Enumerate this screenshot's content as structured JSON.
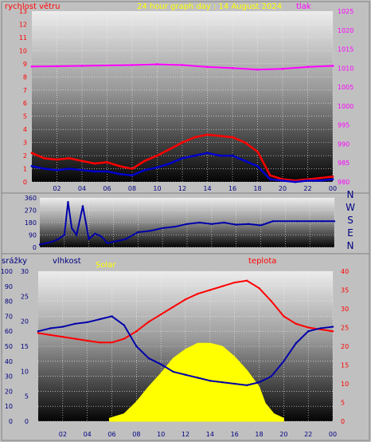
{
  "chart_data": [
    {
      "id": "wind",
      "type": "line",
      "title": "24 hour graph day : 14 August 2024",
      "ylabel": "rychlost větru",
      "y2label": "tlak",
      "ylim": [
        0,
        13
      ],
      "y2lim": [
        980,
        1025
      ],
      "yticks": [
        "0",
        "1",
        "2",
        "3",
        "4",
        "5",
        "6",
        "7",
        "8",
        "9",
        "10",
        "11",
        "12",
        "13"
      ],
      "y2ticks": [
        "980",
        "985",
        "990",
        "995",
        "1000",
        "1005",
        "1010",
        "1015",
        "1020",
        "1025"
      ],
      "xticks": [
        "02",
        "04",
        "06",
        "08",
        "10",
        "12",
        "14",
        "16",
        "18",
        "20",
        "22",
        "00"
      ],
      "series": [
        {
          "color": "#ff0000",
          "x": [
            0,
            1,
            2,
            3,
            4,
            5,
            6,
            7,
            8,
            9,
            10,
            11,
            12,
            13,
            14,
            15,
            16,
            17,
            18,
            19,
            20,
            21,
            22,
            23,
            24
          ],
          "values": [
            2.2,
            1.8,
            1.7,
            1.8,
            1.6,
            1.4,
            1.5,
            1.2,
            1.0,
            1.6,
            2.0,
            2.5,
            3.0,
            3.4,
            3.6,
            3.5,
            3.4,
            3.0,
            2.3,
            0.5,
            0.2,
            0.1,
            0.2,
            0.3,
            0.4
          ]
        },
        {
          "color": "#0000cc",
          "x": [
            0,
            1,
            2,
            3,
            4,
            5,
            6,
            7,
            8,
            9,
            10,
            11,
            12,
            13,
            14,
            15,
            16,
            17,
            18,
            19,
            20,
            21,
            22,
            23,
            24
          ],
          "values": [
            1.2,
            1.0,
            0.9,
            1.0,
            0.9,
            0.8,
            0.8,
            0.6,
            0.5,
            0.9,
            1.1,
            1.4,
            1.8,
            2.0,
            2.2,
            2.0,
            2.0,
            1.6,
            1.2,
            0.2,
            0.1,
            0.0,
            0.1,
            0.1,
            0.2
          ]
        },
        {
          "color": "#ff00ff",
          "axis": "y2",
          "x": [
            0,
            2,
            4,
            6,
            8,
            10,
            12,
            14,
            16,
            18,
            20,
            22,
            24
          ],
          "values": [
            1010.4,
            1010.5,
            1010.6,
            1010.7,
            1010.8,
            1011.0,
            1010.8,
            1010.3,
            1010.0,
            1009.6,
            1009.8,
            1010.3,
            1010.6
          ]
        }
      ]
    },
    {
      "id": "direction",
      "type": "line",
      "ylim": [
        0,
        360
      ],
      "yticks": [
        "0",
        "90",
        "180",
        "270",
        "360"
      ],
      "right_labels": [
        "N",
        "W",
        "S",
        "E",
        "N"
      ],
      "series": [
        {
          "color": "#0000aa",
          "x": [
            0,
            0.5,
            1,
            1.5,
            2,
            2.3,
            2.6,
            3,
            3.5,
            4,
            4.5,
            5,
            5.5,
            6,
            7,
            8,
            9,
            10,
            11,
            12,
            13,
            14,
            15,
            16,
            17,
            18,
            19,
            20,
            21,
            22,
            23,
            24
          ],
          "values": [
            20,
            30,
            40,
            60,
            90,
            330,
            140,
            90,
            300,
            60,
            100,
            80,
            30,
            40,
            60,
            110,
            120,
            140,
            150,
            170,
            180,
            170,
            180,
            165,
            170,
            160,
            190,
            190,
            190,
            190,
            190,
            190
          ]
        }
      ]
    },
    {
      "id": "humidity",
      "type": "line",
      "ylabel": "vlhkost",
      "y0label": "srážky",
      "y3label": "Solar",
      "y2label": "teplota",
      "ylim": [
        0,
        100
      ],
      "y0lim": [
        0,
        30
      ],
      "y2lim": [
        0,
        40
      ],
      "yticks": [
        "0",
        "10",
        "20",
        "30",
        "40",
        "50",
        "60",
        "70",
        "80",
        "90",
        "100"
      ],
      "y0ticks": [
        "0",
        "5",
        "10",
        "15",
        "20",
        "25",
        "30"
      ],
      "y2ticks": [
        "0",
        "5",
        "10",
        "15",
        "20",
        "25",
        "30",
        "35",
        "40"
      ],
      "xticks": [
        "02",
        "04",
        "06",
        "08",
        "10",
        "12",
        "14",
        "16",
        "18",
        "20",
        "22",
        "00"
      ],
      "series": [
        {
          "color": "#ff0000",
          "axis": "y2",
          "x": [
            0,
            1,
            2,
            3,
            4,
            5,
            6,
            7,
            8,
            9,
            10,
            11,
            12,
            13,
            14,
            15,
            16,
            17,
            18,
            19,
            20,
            21,
            22,
            23,
            24
          ],
          "values": [
            23.5,
            23.0,
            22.5,
            22.0,
            21.5,
            21.0,
            21.0,
            22.0,
            24.0,
            26.5,
            28.5,
            30.5,
            32.5,
            34.0,
            35.0,
            36.0,
            37.0,
            37.5,
            35.5,
            32.0,
            28.0,
            26.0,
            25.0,
            24.5,
            24.0
          ]
        },
        {
          "color": "#0000aa",
          "x": [
            0,
            1,
            2,
            3,
            4,
            5,
            6,
            7,
            8,
            9,
            10,
            11,
            12,
            13,
            14,
            15,
            16,
            17,
            18,
            19,
            20,
            21,
            22,
            23,
            24
          ],
          "values": [
            60,
            62,
            63,
            65,
            66,
            68,
            70,
            64,
            50,
            42,
            38,
            33,
            31,
            29,
            27,
            26,
            25,
            24,
            26,
            30,
            40,
            52,
            60,
            62,
            63
          ]
        },
        {
          "color": "#ffff00",
          "type": "area",
          "x": [
            5.8,
            6.2,
            7,
            8,
            9,
            10,
            11,
            12,
            13,
            14,
            15,
            16,
            17,
            18,
            18.5,
            19.2,
            20
          ],
          "values": [
            2,
            3,
            5,
            13,
            23,
            32,
            42,
            48,
            52,
            52,
            50,
            43,
            34,
            23,
            12,
            5,
            2
          ]
        }
      ]
    }
  ]
}
